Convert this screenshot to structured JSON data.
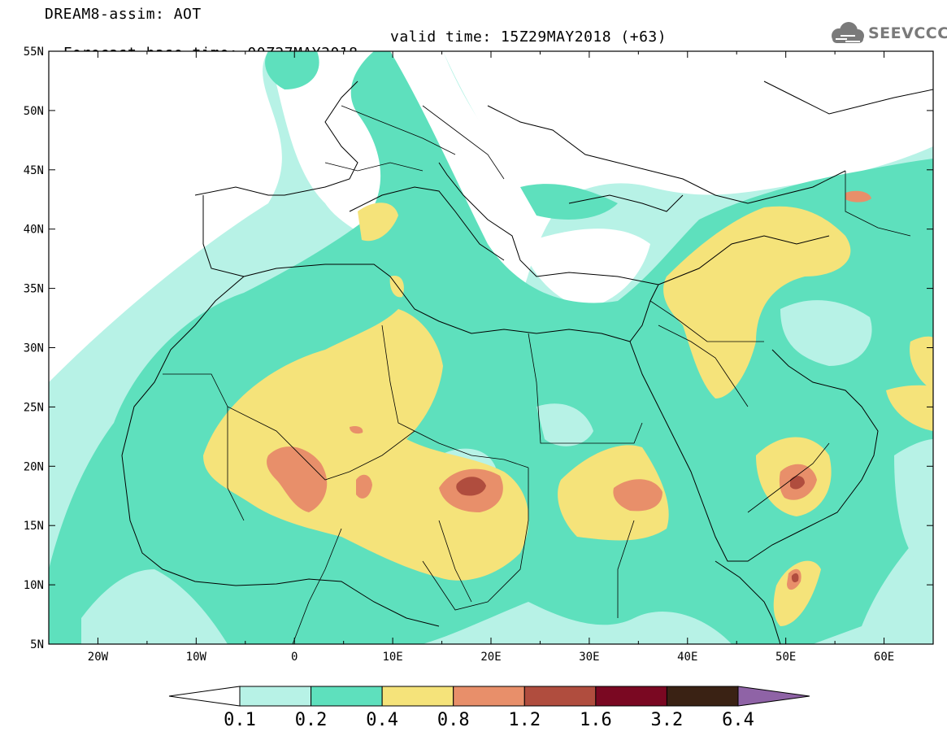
{
  "header": {
    "title_line1": "DREAM8-assim: AOT",
    "base_time": "Forecast base time: 00Z27MAY2018",
    "valid_time": "valid time: 15Z29MAY2018 (+63)"
  },
  "logo": {
    "text": "SEEVCCC",
    "icon": "cloud-icon",
    "color": "#7a7a7a"
  },
  "map": {
    "lon_range": [
      -25,
      65
    ],
    "lat_range": [
      5,
      55
    ],
    "lon_ticks": [
      {
        "value": -20,
        "label": "20W"
      },
      {
        "value": -10,
        "label": "10W"
      },
      {
        "value": 0,
        "label": "0"
      },
      {
        "value": 10,
        "label": "10E"
      },
      {
        "value": 20,
        "label": "20E"
      },
      {
        "value": 30,
        "label": "30E"
      },
      {
        "value": 40,
        "label": "40E"
      },
      {
        "value": 50,
        "label": "50E"
      },
      {
        "value": 60,
        "label": "60E"
      }
    ],
    "lat_ticks": [
      {
        "value": 5,
        "label": "5N"
      },
      {
        "value": 10,
        "label": "10N"
      },
      {
        "value": 15,
        "label": "15N"
      },
      {
        "value": 20,
        "label": "20N"
      },
      {
        "value": 25,
        "label": "25N"
      },
      {
        "value": 30,
        "label": "30N"
      },
      {
        "value": 35,
        "label": "35N"
      },
      {
        "value": 40,
        "label": "40N"
      },
      {
        "value": 45,
        "label": "45N"
      },
      {
        "value": 50,
        "label": "50N"
      },
      {
        "value": 55,
        "label": "55N"
      }
    ]
  },
  "colorbar": {
    "levels": [
      "0.1",
      "0.2",
      "0.4",
      "0.8",
      "1.2",
      "1.6",
      "3.2",
      "6.4"
    ],
    "colors": [
      "#ffffff",
      "#b7f2e6",
      "#5ee0bd",
      "#f5e37a",
      "#e88f6a",
      "#b04d3e",
      "#7a0822",
      "#3a2214",
      "#8f63a6"
    ]
  }
}
